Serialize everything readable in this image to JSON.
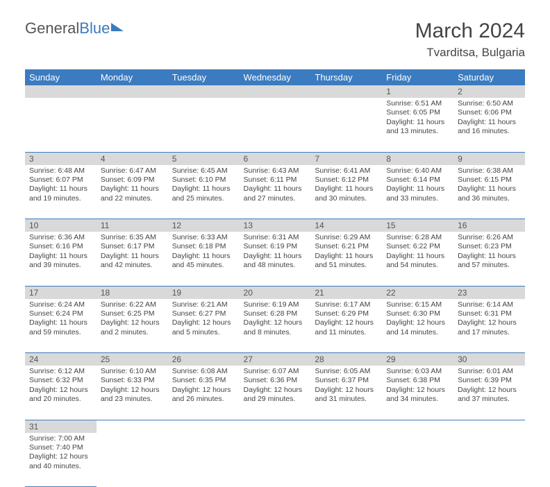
{
  "brand": {
    "part1": "General",
    "part2": "Blue"
  },
  "title": "March 2024",
  "location": "Tvarditsa, Bulgaria",
  "colors": {
    "header_bg": "#3b7bbf",
    "header_text": "#ffffff",
    "daynum_bg": "#d9d9d9",
    "cell_border": "#3b7bbf",
    "text": "#444444"
  },
  "day_headers": [
    "Sunday",
    "Monday",
    "Tuesday",
    "Wednesday",
    "Thursday",
    "Friday",
    "Saturday"
  ],
  "weeks": [
    [
      null,
      null,
      null,
      null,
      null,
      {
        "n": "1",
        "sunrise": "6:51 AM",
        "sunset": "6:05 PM",
        "daylight": "11 hours and 13 minutes."
      },
      {
        "n": "2",
        "sunrise": "6:50 AM",
        "sunset": "6:06 PM",
        "daylight": "11 hours and 16 minutes."
      }
    ],
    [
      {
        "n": "3",
        "sunrise": "6:48 AM",
        "sunset": "6:07 PM",
        "daylight": "11 hours and 19 minutes."
      },
      {
        "n": "4",
        "sunrise": "6:47 AM",
        "sunset": "6:09 PM",
        "daylight": "11 hours and 22 minutes."
      },
      {
        "n": "5",
        "sunrise": "6:45 AM",
        "sunset": "6:10 PM",
        "daylight": "11 hours and 25 minutes."
      },
      {
        "n": "6",
        "sunrise": "6:43 AM",
        "sunset": "6:11 PM",
        "daylight": "11 hours and 27 minutes."
      },
      {
        "n": "7",
        "sunrise": "6:41 AM",
        "sunset": "6:12 PM",
        "daylight": "11 hours and 30 minutes."
      },
      {
        "n": "8",
        "sunrise": "6:40 AM",
        "sunset": "6:14 PM",
        "daylight": "11 hours and 33 minutes."
      },
      {
        "n": "9",
        "sunrise": "6:38 AM",
        "sunset": "6:15 PM",
        "daylight": "11 hours and 36 minutes."
      }
    ],
    [
      {
        "n": "10",
        "sunrise": "6:36 AM",
        "sunset": "6:16 PM",
        "daylight": "11 hours and 39 minutes."
      },
      {
        "n": "11",
        "sunrise": "6:35 AM",
        "sunset": "6:17 PM",
        "daylight": "11 hours and 42 minutes."
      },
      {
        "n": "12",
        "sunrise": "6:33 AM",
        "sunset": "6:18 PM",
        "daylight": "11 hours and 45 minutes."
      },
      {
        "n": "13",
        "sunrise": "6:31 AM",
        "sunset": "6:19 PM",
        "daylight": "11 hours and 48 minutes."
      },
      {
        "n": "14",
        "sunrise": "6:29 AM",
        "sunset": "6:21 PM",
        "daylight": "11 hours and 51 minutes."
      },
      {
        "n": "15",
        "sunrise": "6:28 AM",
        "sunset": "6:22 PM",
        "daylight": "11 hours and 54 minutes."
      },
      {
        "n": "16",
        "sunrise": "6:26 AM",
        "sunset": "6:23 PM",
        "daylight": "11 hours and 57 minutes."
      }
    ],
    [
      {
        "n": "17",
        "sunrise": "6:24 AM",
        "sunset": "6:24 PM",
        "daylight": "11 hours and 59 minutes."
      },
      {
        "n": "18",
        "sunrise": "6:22 AM",
        "sunset": "6:25 PM",
        "daylight": "12 hours and 2 minutes."
      },
      {
        "n": "19",
        "sunrise": "6:21 AM",
        "sunset": "6:27 PM",
        "daylight": "12 hours and 5 minutes."
      },
      {
        "n": "20",
        "sunrise": "6:19 AM",
        "sunset": "6:28 PM",
        "daylight": "12 hours and 8 minutes."
      },
      {
        "n": "21",
        "sunrise": "6:17 AM",
        "sunset": "6:29 PM",
        "daylight": "12 hours and 11 minutes."
      },
      {
        "n": "22",
        "sunrise": "6:15 AM",
        "sunset": "6:30 PM",
        "daylight": "12 hours and 14 minutes."
      },
      {
        "n": "23",
        "sunrise": "6:14 AM",
        "sunset": "6:31 PM",
        "daylight": "12 hours and 17 minutes."
      }
    ],
    [
      {
        "n": "24",
        "sunrise": "6:12 AM",
        "sunset": "6:32 PM",
        "daylight": "12 hours and 20 minutes."
      },
      {
        "n": "25",
        "sunrise": "6:10 AM",
        "sunset": "6:33 PM",
        "daylight": "12 hours and 23 minutes."
      },
      {
        "n": "26",
        "sunrise": "6:08 AM",
        "sunset": "6:35 PM",
        "daylight": "12 hours and 26 minutes."
      },
      {
        "n": "27",
        "sunrise": "6:07 AM",
        "sunset": "6:36 PM",
        "daylight": "12 hours and 29 minutes."
      },
      {
        "n": "28",
        "sunrise": "6:05 AM",
        "sunset": "6:37 PM",
        "daylight": "12 hours and 31 minutes."
      },
      {
        "n": "29",
        "sunrise": "6:03 AM",
        "sunset": "6:38 PM",
        "daylight": "12 hours and 34 minutes."
      },
      {
        "n": "30",
        "sunrise": "6:01 AM",
        "sunset": "6:39 PM",
        "daylight": "12 hours and 37 minutes."
      }
    ],
    [
      {
        "n": "31",
        "sunrise": "7:00 AM",
        "sunset": "7:40 PM",
        "daylight": "12 hours and 40 minutes."
      },
      null,
      null,
      null,
      null,
      null,
      null
    ]
  ],
  "labels": {
    "sunrise": "Sunrise: ",
    "sunset": "Sunset: ",
    "daylight": "Daylight: "
  }
}
